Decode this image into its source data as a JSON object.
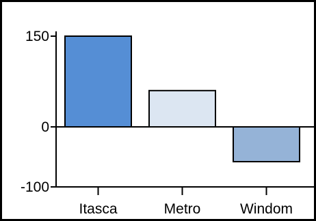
{
  "chart_data": {
    "type": "bar",
    "title": "",
    "xlabel": "",
    "ylabel": "",
    "categories": [
      "Itasca",
      "Metro",
      "Windom"
    ],
    "values": [
      150,
      60,
      -58
    ],
    "bar_colors": [
      "#558ed5",
      "#dce6f2",
      "#95b3d7"
    ],
    "bar_outline_color": "#000000",
    "ylim": [
      -100,
      150
    ],
    "yticks": [
      -100,
      0,
      150
    ],
    "ytick_labels": [
      "-100",
      "0",
      "150"
    ],
    "grid": false,
    "legend": "none",
    "frame_color": "#000000"
  }
}
